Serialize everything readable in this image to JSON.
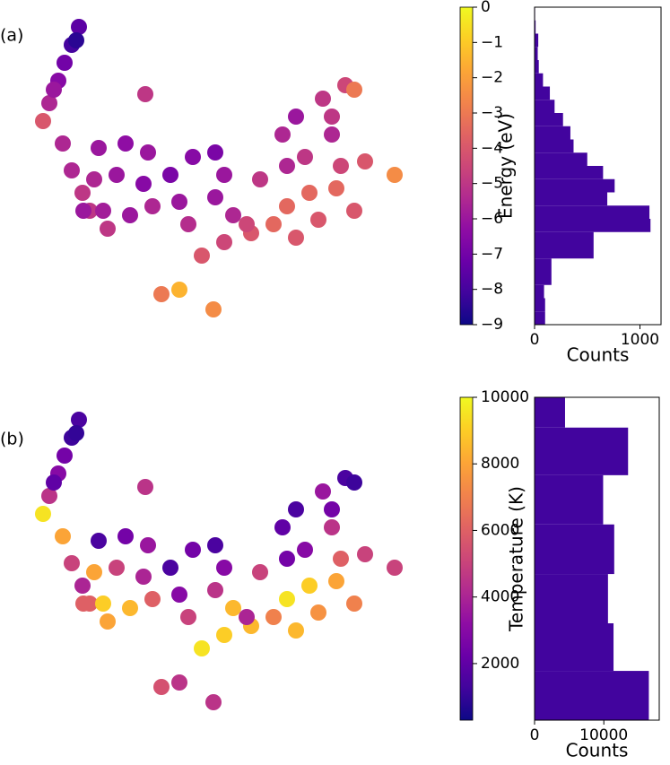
{
  "chart_data": [
    {
      "type": "scatter",
      "panel_label": "(a)",
      "colormap": "plasma",
      "colorbar_label": "Energy (eV)",
      "clim": [
        -9,
        0
      ],
      "cticks": [
        {
          "value": -9,
          "label": "−9"
        },
        {
          "value": -8,
          "label": "−8"
        },
        {
          "value": -7,
          "label": "−7"
        },
        {
          "value": -6,
          "label": "−6"
        },
        {
          "value": -5,
          "label": "−5"
        },
        {
          "value": -4,
          "label": "−4"
        },
        {
          "value": -3,
          "label": "−3"
        },
        {
          "value": -2,
          "label": "−2"
        },
        {
          "value": -1,
          "label": "−1"
        },
        0
      ],
      "xlim": [
        30,
        450
      ],
      "ylim": [
        355,
        10
      ],
      "x": [
        88,
        80,
        72,
        65,
        55,
        48,
        85,
        60,
        70,
        80,
        92,
        100,
        110,
        140,
        165,
        105,
        130,
        160,
        115,
        145,
        170,
        190,
        200,
        210,
        215,
        240,
        250,
        240,
        260,
        225,
        250,
        280,
        305,
        275,
        290,
        315,
        330,
        320,
        340,
        320,
        345,
        330,
        355,
        360,
        370,
        380,
        375,
        395,
        370,
        385,
        395,
        162,
        407,
        440,
        180,
        200,
        238,
        93,
        120
      ],
      "y": [
        30,
        50,
        70,
        90,
        115,
        135,
        45,
        100,
        160,
        190,
        215,
        235,
        165,
        160,
        170,
        200,
        195,
        205,
        235,
        240,
        230,
        195,
        225,
        250,
        175,
        170,
        195,
        220,
        240,
        285,
        270,
        260,
        250,
        250,
        200,
        150,
        130,
        185,
        175,
        230,
        215,
        265,
        245,
        110,
        150,
        185,
        210,
        235,
        130,
        95,
        100,
        105,
        180,
        195,
        328,
        323,
        345,
        235,
        255
      ],
      "values": [
        -7.5,
        -8,
        -7,
        -6.5,
        -5.5,
        -4,
        -8.5,
        -6,
        -5.5,
        -5.5,
        -5,
        -5,
        -6,
        -6.3,
        -6,
        -5.5,
        -6,
        -6.5,
        -5.8,
        -6,
        -5.5,
        -6.8,
        -6,
        -5.3,
        -6.5,
        -6.8,
        -6,
        -6,
        -5.5,
        -4,
        -4.5,
        -4,
        -3.5,
        -4.5,
        -5,
        -5.5,
        -6,
        -5.5,
        -5,
        -3.5,
        -3.5,
        -4,
        -4,
        -5,
        -5.5,
        -4.5,
        -3.5,
        -4,
        -5,
        -4.5,
        -3,
        -5,
        -4,
        -2.5,
        -3,
        -1.5,
        -2.5,
        -6,
        -5
      ]
    },
    {
      "type": "histogram",
      "orientation": "horizontal",
      "color": "#42049e",
      "bins": [
        -9,
        -8.625,
        -8.25,
        -7.875,
        -7.5,
        -7.125,
        -6.75,
        -6.375,
        -6,
        -5.625,
        -5.25,
        -4.875,
        -4.5,
        -4.125,
        -3.75,
        -3.375,
        -3,
        -2.625,
        -2.25,
        -1.875,
        -1.5,
        -1.125,
        -0.75,
        -0.375,
        0
      ],
      "counts": [
        100,
        100,
        90,
        160,
        160,
        560,
        560,
        1100,
        1090,
        690,
        760,
        650,
        500,
        370,
        340,
        270,
        190,
        145,
        80,
        40,
        30,
        35,
        10,
        5
      ],
      "ylim": [
        -9,
        0
      ],
      "xlim": [
        0,
        1200
      ],
      "xticks": [
        0,
        1000
      ],
      "xlabel": "Counts"
    },
    {
      "type": "scatter",
      "panel_label": "(b)",
      "colormap": "plasma",
      "colorbar_label": "Temperature (K)",
      "clim": [
        300,
        10000
      ],
      "cticks": [
        2000,
        4000,
        6000,
        8000,
        10000
      ],
      "xlim": [
        30,
        450
      ],
      "ylim": [
        355,
        10
      ],
      "x": [
        88,
        80,
        72,
        65,
        55,
        48,
        85,
        60,
        70,
        80,
        92,
        100,
        110,
        140,
        165,
        105,
        130,
        160,
        115,
        145,
        170,
        190,
        200,
        210,
        215,
        240,
        250,
        240,
        260,
        225,
        250,
        280,
        305,
        275,
        290,
        315,
        330,
        320,
        340,
        320,
        345,
        330,
        355,
        360,
        370,
        380,
        375,
        395,
        370,
        385,
        395,
        162,
        407,
        440,
        180,
        200,
        238,
        93,
        120
      ],
      "y": [
        30,
        50,
        70,
        90,
        115,
        135,
        45,
        100,
        160,
        190,
        215,
        235,
        165,
        160,
        170,
        200,
        195,
        205,
        235,
        240,
        230,
        195,
        225,
        250,
        175,
        170,
        195,
        220,
        240,
        285,
        270,
        260,
        250,
        250,
        200,
        150,
        130,
        185,
        175,
        230,
        215,
        265,
        245,
        110,
        150,
        185,
        210,
        235,
        130,
        95,
        100,
        105,
        180,
        195,
        328,
        323,
        345,
        235,
        255
      ],
      "values": [
        1500,
        1200,
        2500,
        3000,
        4500,
        9500,
        1000,
        2000,
        8000,
        5000,
        4000,
        6000,
        1500,
        2500,
        3500,
        8000,
        5000,
        4000,
        9000,
        8500,
        6000,
        1500,
        3000,
        5000,
        2500,
        1500,
        3000,
        4500,
        8500,
        9500,
        9000,
        8500,
        7000,
        4000,
        5000,
        2000,
        1500,
        2500,
        3000,
        9500,
        9000,
        8500,
        7500,
        3500,
        4500,
        6000,
        8000,
        7000,
        2500,
        1500,
        1200,
        4500,
        5000,
        5000,
        5500,
        4500,
        4500,
        6000,
        8000
      ]
    },
    {
      "type": "histogram",
      "orientation": "horizontal",
      "color": "#42049e",
      "bins": [
        300,
        1780,
        3210,
        4690,
        6180,
        7660,
        9090,
        10000
      ],
      "counts": [
        16500,
        11400,
        10600,
        11500,
        9900,
        13500,
        4400
      ],
      "ylim": [
        300,
        10000
      ],
      "xlim": [
        0,
        18000
      ],
      "xticks": [
        0,
        10000
      ],
      "xlabel": "Counts"
    }
  ]
}
